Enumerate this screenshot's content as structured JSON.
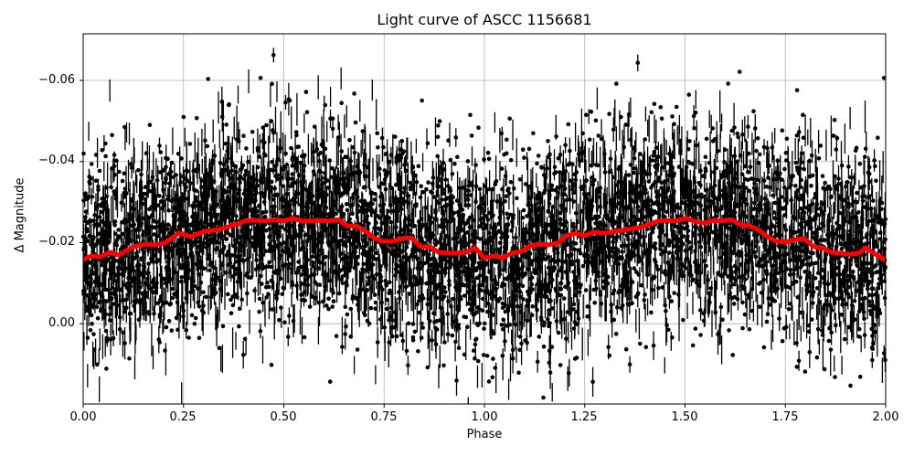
{
  "chart_data": {
    "type": "scatter",
    "title": "Light curve of ASCC 1156681",
    "xlabel": "Phase",
    "ylabel": "Δ Magnitude",
    "xlim": [
      0.0,
      2.0
    ],
    "ylim": [
      0.0198,
      -0.0715
    ],
    "y_inverted": true,
    "grid": true,
    "x_ticks": [
      "0.00",
      "0.25",
      "0.50",
      "0.75",
      "1.00",
      "1.25",
      "1.50",
      "1.75",
      "2.00"
    ],
    "y_ticks": [
      "−0.06",
      "−0.04",
      "−0.02",
      "0.00"
    ],
    "series": [
      {
        "name": "observations",
        "style": "black points with vertical error bars",
        "color": "#000000",
        "description": "dense noisy cloud centred near -0.02 mag, spread roughly -0.07 to +0.02",
        "mean": -0.02,
        "std": 0.012
      },
      {
        "name": "binned curve",
        "style": "thick red line",
        "color": "#ff0000",
        "x": [
          0.0,
          0.02,
          0.043,
          0.066,
          0.089,
          0.112,
          0.134,
          0.157,
          0.18,
          0.203,
          0.226,
          0.237,
          0.248,
          0.271,
          0.282,
          0.305,
          0.339,
          0.385,
          0.408,
          0.431,
          0.453,
          0.476,
          0.499,
          0.522,
          0.545,
          0.567,
          0.59,
          0.613,
          0.636,
          0.658,
          0.681,
          0.704,
          0.727,
          0.749,
          0.772,
          0.795,
          0.818,
          0.841,
          0.863,
          0.886,
          0.909,
          0.927,
          0.954,
          0.977,
          1.0,
          1.023,
          1.045,
          1.068,
          1.091,
          1.114,
          1.136,
          1.159,
          1.182,
          1.205,
          1.228,
          1.25,
          1.273,
          1.296,
          1.342,
          1.387,
          1.433,
          1.456,
          1.478,
          1.501,
          1.524,
          1.547,
          1.57,
          1.592,
          1.615,
          1.638,
          1.661,
          1.683,
          1.706,
          1.729,
          1.752,
          1.774,
          1.797,
          1.82,
          1.843,
          1.865,
          1.888,
          1.911,
          1.934,
          1.95,
          2.0
        ],
        "values": [
          -0.0158,
          -0.0167,
          -0.0165,
          -0.0176,
          -0.0169,
          -0.0183,
          -0.0192,
          -0.0196,
          -0.0194,
          -0.0199,
          -0.0214,
          -0.0223,
          -0.0221,
          -0.0214,
          -0.0221,
          -0.0228,
          -0.0232,
          -0.0246,
          -0.0255,
          -0.0255,
          -0.0253,
          -0.0257,
          -0.0253,
          -0.026,
          -0.0253,
          -0.0253,
          -0.0255,
          -0.0253,
          -0.0257,
          -0.0241,
          -0.0241,
          -0.0228,
          -0.021,
          -0.0203,
          -0.0203,
          -0.021,
          -0.0212,
          -0.019,
          -0.019,
          -0.0176,
          -0.0174,
          -0.0174,
          -0.0176,
          -0.0187,
          -0.0162,
          -0.0167,
          -0.0162,
          -0.0174,
          -0.0178,
          -0.0192,
          -0.0196,
          -0.0194,
          -0.0199,
          -0.0217,
          -0.0223,
          -0.0217,
          -0.0226,
          -0.0223,
          -0.023,
          -0.0237,
          -0.0253,
          -0.0255,
          -0.0253,
          -0.026,
          -0.0253,
          -0.0248,
          -0.0255,
          -0.0253,
          -0.0257,
          -0.0244,
          -0.0241,
          -0.0232,
          -0.0214,
          -0.0203,
          -0.0201,
          -0.0208,
          -0.021,
          -0.019,
          -0.0187,
          -0.0176,
          -0.0174,
          -0.0171,
          -0.0174,
          -0.0187,
          -0.0156
        ]
      }
    ]
  }
}
